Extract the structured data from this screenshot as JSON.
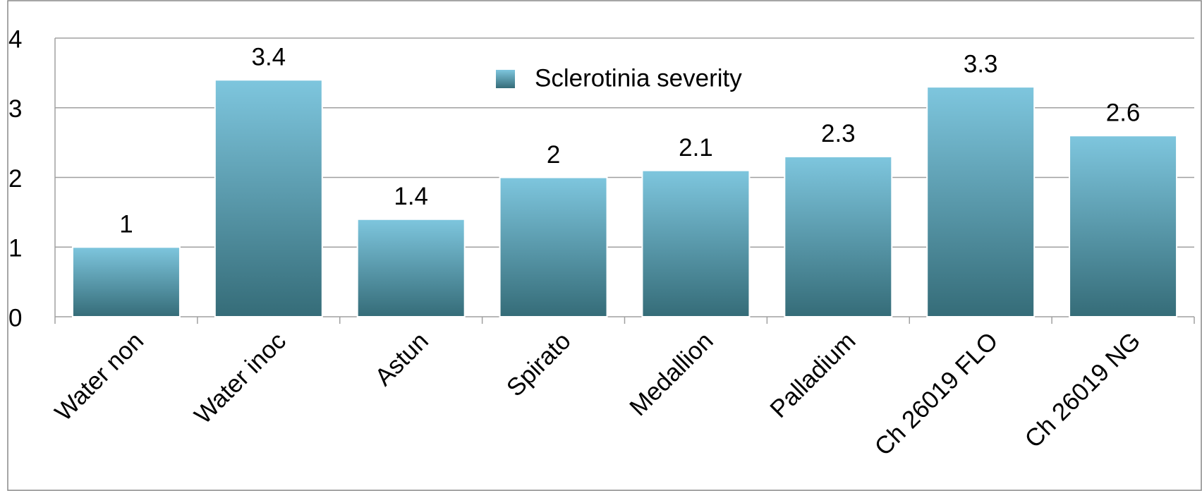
{
  "chart_data": {
    "type": "bar",
    "categories": [
      "Water non",
      "Water inoc",
      "Astun",
      "Spirato",
      "Medallion",
      "Palladium",
      "Ch 26019 FLO",
      "Ch 26019 NG"
    ],
    "series": [
      {
        "name": "Sclerotinia severity",
        "color": "#5aa3b8",
        "values": [
          1,
          3.4,
          1.4,
          2,
          2.1,
          2.3,
          3.3,
          2.6
        ]
      }
    ],
    "ylim": [
      0,
      4
    ],
    "yticks": [
      0,
      1,
      2,
      3,
      4
    ],
    "grid": true,
    "legend": "top"
  }
}
